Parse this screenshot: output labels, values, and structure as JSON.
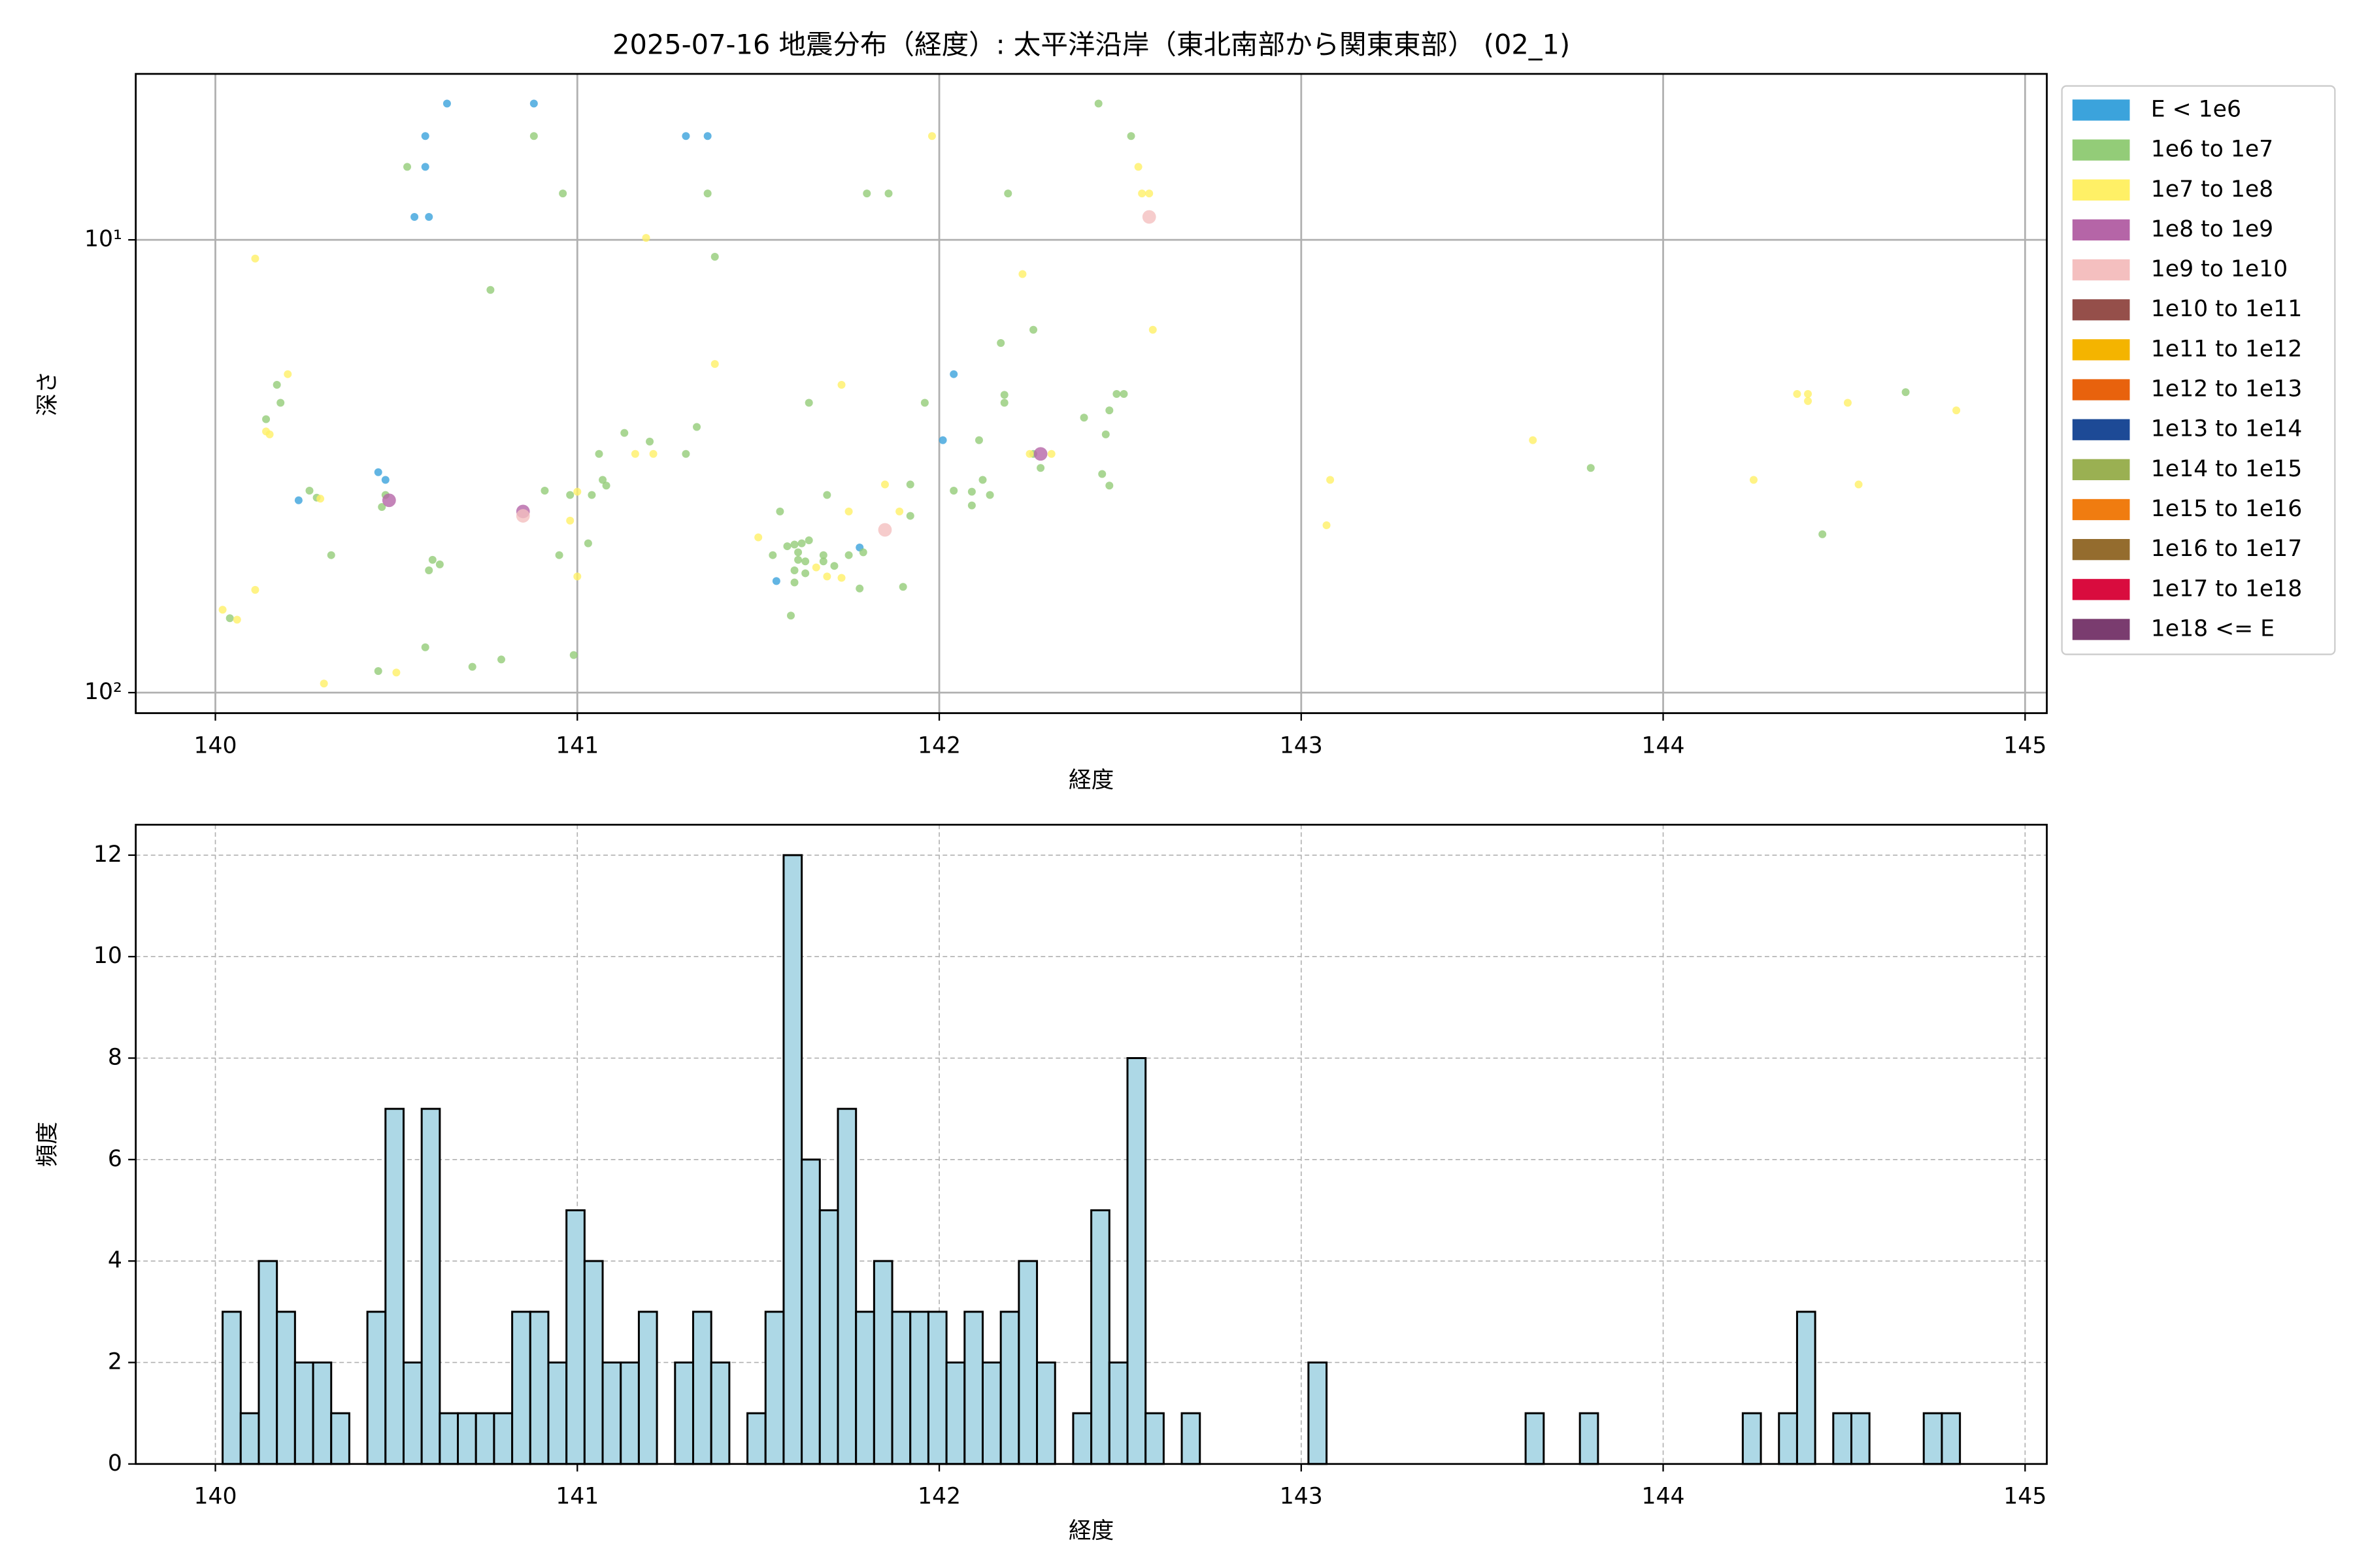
{
  "chart_data": [
    {
      "type": "scatter",
      "title": "2025-07-16 地震分布（経度）: 太平洋沿岸（東北南部から関東東部） (02_1)",
      "xlabel": "経度",
      "ylabel": "深さ",
      "xlim": [
        139.78,
        145.06
      ],
      "xticks": [
        140,
        141,
        142,
        143,
        144,
        145
      ],
      "ylim": [
        111,
        4.3
      ],
      "yticks": [
        {
          "value": 10,
          "label": "10¹"
        },
        {
          "value": 100,
          "label": "10²"
        }
      ],
      "log_y": true,
      "grid": true,
      "legend": "outside right",
      "series": [
        {
          "name": "E < 1e6",
          "color": "#3ba3dc",
          "x": [
            140.64,
            140.88,
            140.58,
            141.3,
            141.36,
            140.58,
            140.55,
            140.59,
            142.04,
            142.01,
            140.45,
            140.47,
            140.23,
            141.55,
            141.78
          ],
          "y": [
            5,
            5,
            5.9,
            5.9,
            5.9,
            6.9,
            8.9,
            8.9,
            19.8,
            27.7,
            32.6,
            33.9,
            37.6,
            56.7,
            47.8
          ]
        },
        {
          "name": "1e6 to 1e7",
          "color": "#93cc78",
          "x": [
            142.44,
            142.53,
            140.88,
            140.53,
            140.96,
            141.36,
            141.8,
            141.86,
            142.19,
            141.38,
            140.76,
            142.17,
            142.26,
            142.18,
            142.18,
            140.17,
            140.18,
            140.14,
            141.64,
            141.96,
            142.49,
            142.51,
            142.47,
            142.4,
            142.46,
            141.13,
            141.2,
            141.33,
            141.06,
            141.3,
            142.11,
            142.12,
            142.04,
            142.09,
            142.09,
            142.14,
            142.26,
            142.28,
            142.45,
            142.47,
            143.8,
            144.44,
            144.67,
            140.26,
            140.28,
            140.47,
            140.46,
            140.91,
            140.98,
            141.04,
            141.07,
            141.08,
            141.69,
            141.92,
            141.92,
            141.56,
            141.03,
            140.32,
            140.6,
            140.62,
            140.59,
            140.95,
            141.54,
            141.58,
            141.6,
            141.62,
            141.64,
            141.61,
            141.63,
            141.6,
            141.68,
            141.68,
            141.75,
            141.79,
            141.63,
            141.6,
            141.71,
            141.78,
            141.9,
            141.59,
            140.04,
            140.99,
            140.79,
            140.71,
            140.45,
            140.58,
            141.61
          ],
          "y": [
            5,
            5.9,
            5.9,
            6.9,
            7.9,
            7.9,
            7.9,
            7.9,
            7.9,
            10.9,
            12.9,
            16.9,
            15.8,
            22,
            22.9,
            20.9,
            22.9,
            24.9,
            22.9,
            22.9,
            21.9,
            21.9,
            23.8,
            24.7,
            26.9,
            26.7,
            27.9,
            25.9,
            29.7,
            29.7,
            27.7,
            33.9,
            35.8,
            36,
            38.6,
            36.6,
            29.7,
            31.9,
            32.9,
            34.9,
            31.9,
            44.7,
            21.7,
            35.8,
            37.1,
            36.6,
            38.9,
            35.8,
            36.6,
            36.6,
            33.9,
            34.9,
            36.6,
            34.7,
            40.7,
            39.8,
            46.8,
            49.7,
            50.9,
            52.1,
            53.7,
            49.7,
            49.7,
            47.5,
            47.1,
            46.8,
            46.1,
            49,
            51.3,
            53.7,
            51.3,
            49.7,
            49.7,
            49,
            54.5,
            57.1,
            52.5,
            58.9,
            58.4,
            67.6,
            68.5,
            82.6,
            84.5,
            87.7,
            89.6,
            79.4,
            50.9
          ]
        },
        {
          "name": "1e7 to 1e8",
          "color": "#fff066",
          "x": [
            141.98,
            142.55,
            142.56,
            142.58,
            141.19,
            140.11,
            142.23,
            142.59,
            141.38,
            140.2,
            141.73,
            140.14,
            140.15,
            140.29,
            141.16,
            141.21,
            142.31,
            143.08,
            143.64,
            144.25,
            144.54,
            144.37,
            144.4,
            144.4,
            144.51,
            144.81,
            141.0,
            140.98,
            141.0,
            141.85,
            141.89,
            143.07,
            141.5,
            140.11,
            140.02,
            140.06,
            140.3,
            140.5,
            141.73,
            141.69,
            141.75,
            141.66,
            142.25
          ],
          "y": [
            5.9,
            6.9,
            7.9,
            7.9,
            9.9,
            11,
            11.9,
            15.8,
            18.8,
            19.8,
            20.9,
            26.5,
            26.9,
            37.3,
            29.7,
            29.7,
            29.7,
            33.9,
            27.7,
            33.9,
            34.7,
            21.9,
            21.9,
            22.7,
            22.9,
            23.8,
            36,
            41.7,
            55.4,
            34.7,
            39.8,
            42.7,
            45.4,
            59.3,
            65.6,
            69,
            95.5,
            90.3,
            55.8,
            55.4,
            39.8,
            52.9,
            29.7
          ]
        },
        {
          "name": "1e8 to 1e9",
          "color": "#b565a7",
          "x": [
            140.48,
            140.85,
            142.28
          ],
          "y": [
            37.6,
            39.8,
            29.7
          ]
        },
        {
          "name": "1e9 to 1e10",
          "color": "#f4bfbf",
          "x": [
            142.58,
            141.85,
            140.85
          ],
          "y": [
            8.9,
            43.7,
            40.7
          ]
        },
        {
          "name": "1e10 to 1e11",
          "color": "#954f4a",
          "x": [],
          "y": []
        },
        {
          "name": "1e11 to 1e12",
          "color": "#f4b400",
          "x": [],
          "y": []
        },
        {
          "name": "1e12 to 1e13",
          "color": "#e8620d",
          "x": [],
          "y": []
        },
        {
          "name": "1e13 to 1e14",
          "color": "#1d4a96",
          "x": [],
          "y": []
        },
        {
          "name": "1e14 to 1e15",
          "color": "#9ab052",
          "x": [],
          "y": []
        },
        {
          "name": "1e15 to 1e16",
          "color": "#f07c10",
          "x": [],
          "y": []
        },
        {
          "name": "1e16 to 1e17",
          "color": "#946c2e",
          "x": [],
          "y": []
        },
        {
          "name": "1e17 to 1e18",
          "color": "#d90c3e",
          "x": [],
          "y": []
        },
        {
          "name": "1e18 <= E",
          "color": "#7a3c6f",
          "x": [],
          "y": []
        }
      ]
    },
    {
      "type": "histogram",
      "xlabel": "経度",
      "ylabel": "頻度",
      "xlim": [
        139.78,
        145.06
      ],
      "xticks": [
        140,
        141,
        142,
        143,
        144,
        145
      ],
      "ylim": [
        0,
        12.6
      ],
      "yticks": [
        0,
        2,
        4,
        6,
        8,
        10,
        12
      ],
      "grid": true,
      "grid_style": "dashed",
      "color": "#add8e6",
      "edgecolor": "#000000",
      "bins": [
        140.02,
        140.07,
        140.12,
        140.17,
        140.22,
        140.27,
        140.32,
        140.37,
        140.42,
        140.47,
        140.52,
        140.57,
        140.62,
        140.67,
        140.72,
        140.77,
        140.82,
        140.87,
        140.92,
        140.97,
        141.02,
        141.07,
        141.12,
        141.17,
        141.22,
        141.27,
        141.32,
        141.37,
        141.42,
        141.47,
        141.52,
        141.57,
        141.62,
        141.67,
        141.72,
        141.77,
        141.82,
        141.87,
        141.92,
        141.97,
        142.02,
        142.07,
        142.12,
        142.17,
        142.22,
        142.27,
        142.32,
        142.37,
        142.42,
        142.47,
        142.52,
        142.57,
        142.62,
        142.67,
        142.72,
        142.77,
        142.82,
        142.87,
        142.92,
        142.97,
        143.02,
        143.07,
        143.12,
        143.17,
        143.22,
        143.27,
        143.32,
        143.37,
        143.42,
        143.47,
        143.52,
        143.57,
        143.62,
        143.67,
        143.72,
        143.77,
        143.82,
        143.87,
        143.92,
        143.97,
        144.02,
        144.07,
        144.12,
        144.17,
        144.22,
        144.27,
        144.32,
        144.37,
        144.42,
        144.47,
        144.52,
        144.57,
        144.62,
        144.67,
        144.72,
        144.77,
        144.82
      ],
      "values": [
        3,
        1,
        4,
        3,
        2,
        2,
        1,
        0,
        3,
        7,
        2,
        7,
        1,
        1,
        1,
        1,
        3,
        3,
        2,
        5,
        4,
        2,
        2,
        3,
        0,
        2,
        3,
        2,
        0,
        1,
        3,
        12,
        6,
        5,
        7,
        3,
        4,
        3,
        3,
        3,
        2,
        3,
        2,
        3,
        4,
        2,
        0,
        1,
        5,
        2,
        8,
        1,
        0,
        1,
        0,
        0,
        0,
        0,
        0,
        0,
        2,
        0,
        0,
        0,
        0,
        0,
        0,
        0,
        0,
        0,
        0,
        0,
        1,
        0,
        0,
        1,
        0,
        0,
        0,
        0,
        0,
        0,
        0,
        0,
        1,
        0,
        1,
        3,
        0,
        1,
        1,
        0,
        0,
        0,
        1,
        1
      ]
    }
  ]
}
